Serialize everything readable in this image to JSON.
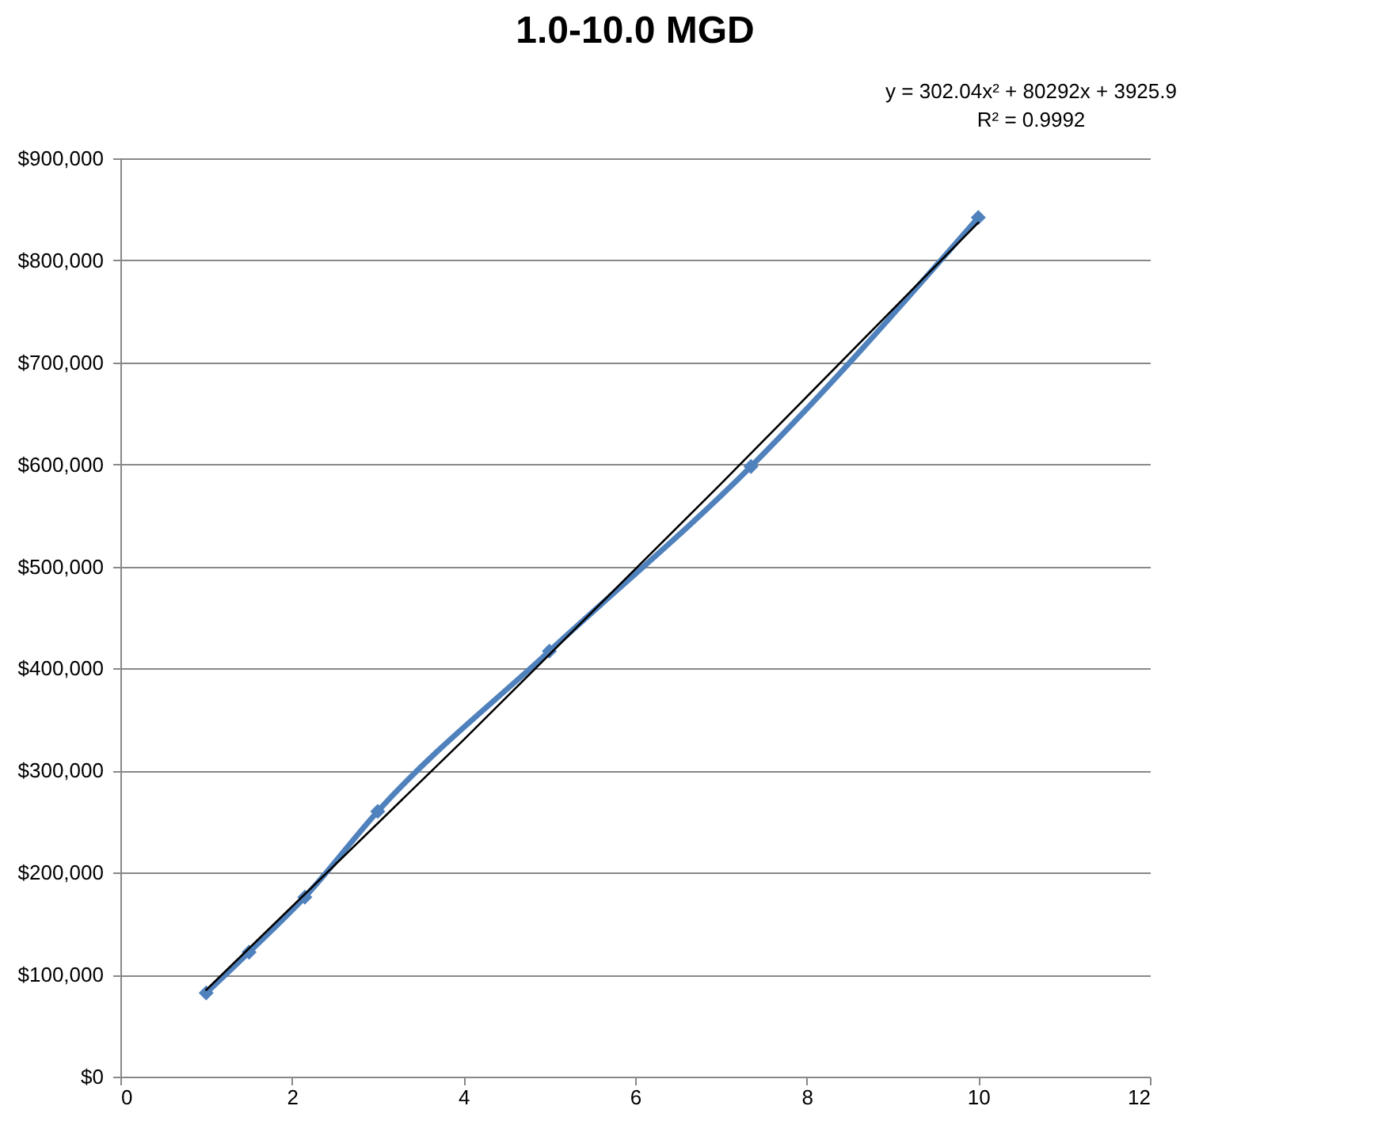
{
  "chart_data": {
    "type": "line",
    "title": "1.0-10.0 MGD",
    "annotations": [
      "y = 302.04x² + 80292x + 3925.9",
      "R² = 0.9992"
    ],
    "x": [
      1,
      1.5,
      2.15,
      3,
      5,
      7.35,
      10
    ],
    "series": [
      {
        "color": "#4f81bd",
        "values": [
          82000,
          122000,
          176000,
          260000,
          417000,
          598000,
          842000
        ],
        "marker": "diamond"
      },
      {
        "type": "line",
        "color": "#000000",
        "x": [
          1,
          4,
          7,
          10
        ],
        "values": [
          85000,
          330000,
          581000,
          837000
        ],
        "marker": "none"
      }
    ],
    "xlim": [
      0,
      12
    ],
    "xticks": [
      0,
      2,
      4,
      6,
      8,
      10,
      12
    ],
    "ylim": [
      0,
      900000
    ],
    "yticks": [
      {
        "value": 0,
        "label": "$0"
      },
      {
        "value": 100000,
        "label": "$100,000"
      },
      {
        "value": 200000,
        "label": "$200,000"
      },
      {
        "value": 300000,
        "label": "$300,000"
      },
      {
        "value": 400000,
        "label": "$400,000"
      },
      {
        "value": 500000,
        "label": "$500,000"
      },
      {
        "value": 600000,
        "label": "$600,000"
      },
      {
        "value": 700000,
        "label": "$700,000"
      },
      {
        "value": 800000,
        "label": "$800,000"
      },
      {
        "value": 900000,
        "label": "$900,000"
      }
    ],
    "grid": "y"
  }
}
